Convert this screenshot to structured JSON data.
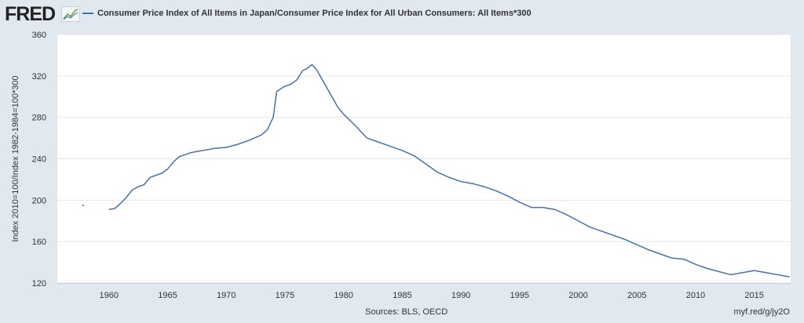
{
  "header": {
    "logo": "FRED",
    "logo_icon": "chart-line-icon"
  },
  "chart_data": {
    "type": "line",
    "title": "",
    "xlabel": "",
    "ylabel": "Index 2010=100/Index 1982-1984=100*300",
    "xlim": [
      1955.6,
      2018.1
    ],
    "ylim": [
      120,
      360
    ],
    "yticks": [
      120,
      160,
      200,
      240,
      280,
      320,
      360
    ],
    "xticks": [
      1960,
      1965,
      1970,
      1975,
      1980,
      1985,
      1990,
      1995,
      2000,
      2005,
      2010,
      2015
    ],
    "grid": true,
    "legend_position": "top-left",
    "series": [
      {
        "name": "Consumer Price Index of All Items in Japan/Consumer Price Index for All Urban Consumers: All Items*300",
        "color": "#4572a7",
        "x": [
          1960,
          1960.5,
          1961,
          1961.5,
          1962,
          1962.5,
          1963,
          1963.5,
          1964,
          1964.5,
          1965,
          1965.5,
          1966,
          1966.5,
          1967,
          1968,
          1969,
          1970,
          1971,
          1972,
          1973,
          1973.5,
          1974,
          1974.3,
          1975,
          1975.5,
          1976,
          1976.5,
          1977,
          1977.3,
          1977.7,
          1978,
          1978.5,
          1979,
          1979.5,
          1980,
          1981,
          1982,
          1983,
          1984,
          1985,
          1986,
          1987,
          1988,
          1989,
          1990,
          1991,
          1992,
          1993,
          1994,
          1995,
          1996,
          1997,
          1998,
          1999,
          2000,
          2001,
          2002,
          2003,
          2004,
          2005,
          2006,
          2007,
          2008,
          2009,
          2010,
          2011,
          2012,
          2013,
          2014,
          2015,
          2016,
          2017,
          2018
        ],
        "y": [
          191,
          192,
          197,
          203,
          210,
          213,
          215,
          222,
          224,
          226,
          230,
          237,
          242,
          244,
          246,
          248,
          250,
          251,
          254,
          258,
          263,
          268,
          280,
          305,
          310,
          312,
          316,
          325,
          328,
          331,
          326,
          320,
          310,
          300,
          290,
          283,
          272,
          260,
          256,
          252,
          248,
          243,
          235,
          227,
          222,
          218,
          216,
          213,
          209,
          204,
          198,
          193,
          193,
          191,
          186,
          180,
          174,
          170,
          166,
          162,
          157,
          152,
          148,
          144,
          143,
          138,
          134,
          131,
          128,
          130,
          132,
          130,
          128,
          126
        ]
      }
    ],
    "points": [
      {
        "x": 1957.8,
        "y": 195,
        "color": "#b04040"
      }
    ]
  },
  "footer": {
    "sources": "Sources: BLS, OECD",
    "url": "myf.red/g/jy2O"
  }
}
